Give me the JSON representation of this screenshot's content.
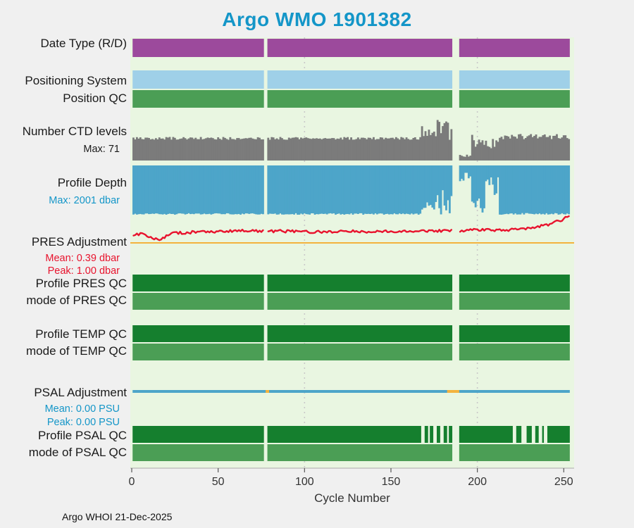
{
  "title": "Argo WMO 1901382",
  "footer": "Argo WHOI 21-Dec-2025",
  "colors": {
    "title": "#1496c8",
    "page_bg": "#f0f0f0",
    "plot_bg": "#e9f6e1",
    "gridline": "#c9c9c9"
  },
  "chart_data": {
    "type": "multi-track-timeline",
    "title": "Argo WMO 1901382",
    "xlabel": "Cycle Number",
    "x_range": [
      0,
      256
    ],
    "x_ticks": [
      0,
      50,
      100,
      150,
      200,
      250
    ],
    "gridlines_x": [
      100,
      200
    ],
    "cycles": [
      1,
      253
    ],
    "data_gaps": [
      [
        77,
        78
      ],
      [
        186,
        189
      ]
    ],
    "tracks": [
      {
        "id": "date-type",
        "label": "Date Type (R/D)",
        "kind": "solid",
        "color": "#9c4a9c"
      },
      {
        "id": "positioning-system",
        "label": "Positioning System",
        "kind": "solid",
        "color": "#9fd0e8"
      },
      {
        "id": "position-qc",
        "label": "Position QC",
        "kind": "solid",
        "color": "#4b9e55"
      },
      {
        "id": "ctd-levels",
        "label": "Number CTD levels",
        "sublabels": [
          {
            "text": "Max: 71",
            "color": "#1a1a1a"
          }
        ],
        "kind": "bars-up",
        "color": "#7b7b7b",
        "max": 71,
        "profile": [
          {
            "from": 1,
            "to": 167,
            "min": 36,
            "max": 41
          },
          {
            "from": 168,
            "to": 176,
            "min": 40,
            "max": 62
          },
          {
            "from": 177,
            "to": 185,
            "min": 34,
            "max": 71
          },
          {
            "from": 190,
            "to": 196,
            "min": 4,
            "max": 18
          },
          {
            "from": 197,
            "to": 204,
            "min": 24,
            "max": 50
          },
          {
            "from": 205,
            "to": 212,
            "min": 18,
            "max": 46
          },
          {
            "from": 213,
            "to": 253,
            "min": 37,
            "max": 47
          }
        ]
      },
      {
        "id": "profile-depth",
        "label": "Profile Depth",
        "sublabels": [
          {
            "text": "Max: 2001 dbar",
            "color": "#1496c8"
          }
        ],
        "kind": "bars-down",
        "color": "#4da5c9",
        "max": 2001,
        "profile": [
          {
            "from": 1,
            "to": 167,
            "min": 1940,
            "max": 2001
          },
          {
            "from": 168,
            "to": 176,
            "min": 1450,
            "max": 2001
          },
          {
            "from": 177,
            "to": 185,
            "min": 900,
            "max": 2001
          },
          {
            "from": 190,
            "to": 196,
            "min": 280,
            "max": 800
          },
          {
            "from": 197,
            "to": 204,
            "min": 1150,
            "max": 2001
          },
          {
            "from": 205,
            "to": 212,
            "min": 450,
            "max": 1200
          },
          {
            "from": 213,
            "to": 253,
            "min": 1930,
            "max": 2001
          }
        ]
      },
      {
        "id": "pres-adjustment",
        "label": "PRES Adjustment",
        "sublabels": [
          {
            "text": "Mean: 0.39 dbar",
            "color": "#e8132d"
          },
          {
            "text": "Peak: 1.00 dbar",
            "color": "#e8132d"
          }
        ],
        "kind": "line",
        "color": "#e8132d",
        "baseline_color": "#f3b33e",
        "mean": 0.39,
        "peak": 1.0,
        "noise": 0.05,
        "keypoints": [
          [
            1,
            0.28
          ],
          [
            6,
            0.33
          ],
          [
            12,
            0.18
          ],
          [
            17,
            0.1
          ],
          [
            22,
            0.33
          ],
          [
            35,
            0.38
          ],
          [
            50,
            0.41
          ],
          [
            65,
            0.43
          ],
          [
            76,
            0.4
          ],
          [
            80,
            0.42
          ],
          [
            95,
            0.41
          ],
          [
            110,
            0.39
          ],
          [
            125,
            0.42
          ],
          [
            140,
            0.4
          ],
          [
            155,
            0.42
          ],
          [
            170,
            0.41
          ],
          [
            185,
            0.43
          ],
          [
            190,
            0.44
          ],
          [
            205,
            0.46
          ],
          [
            215,
            0.45
          ],
          [
            225,
            0.5
          ],
          [
            235,
            0.57
          ],
          [
            243,
            0.68
          ],
          [
            248,
            0.8
          ],
          [
            253,
            0.93
          ]
        ]
      },
      {
        "id": "profile-pres-qc",
        "label": "Profile PRES QC",
        "kind": "solid",
        "color": "#157f2e"
      },
      {
        "id": "mode-pres-qc",
        "label": "mode of PRES QC",
        "kind": "solid",
        "color": "#4b9e55"
      },
      {
        "id": "profile-temp-qc",
        "label": "Profile TEMP QC",
        "kind": "solid",
        "color": "#157f2e"
      },
      {
        "id": "mode-temp-qc",
        "label": "mode of TEMP QC",
        "kind": "solid",
        "color": "#4b9e55"
      },
      {
        "id": "psal-adjustment",
        "label": "PSAL Adjustment",
        "sublabels": [
          {
            "text": "Mean: 0.00 PSU",
            "color": "#1496c8"
          },
          {
            "text": "Peak: 0.00 PSU",
            "color": "#1496c8"
          }
        ],
        "kind": "flatline",
        "color": "#4da5c9",
        "value": 0.0,
        "anomaly_color": "#f3b33e",
        "anomalies": [
          [
            78,
            79
          ],
          [
            183,
            189
          ]
        ]
      },
      {
        "id": "profile-psal-qc",
        "label": "Profile PSAL QC",
        "kind": "solid",
        "color": "#157f2e",
        "gap_cycles": [
          [
            168,
            169
          ],
          [
            172,
            172
          ],
          [
            175,
            176
          ],
          [
            179,
            180
          ],
          [
            183,
            183
          ],
          [
            221,
            222
          ],
          [
            226,
            228
          ],
          [
            232,
            233
          ],
          [
            236,
            237
          ],
          [
            239,
            240
          ]
        ]
      },
      {
        "id": "mode-psal-qc",
        "label": "mode of PSAL QC",
        "kind": "solid",
        "color": "#4b9e55"
      }
    ]
  }
}
